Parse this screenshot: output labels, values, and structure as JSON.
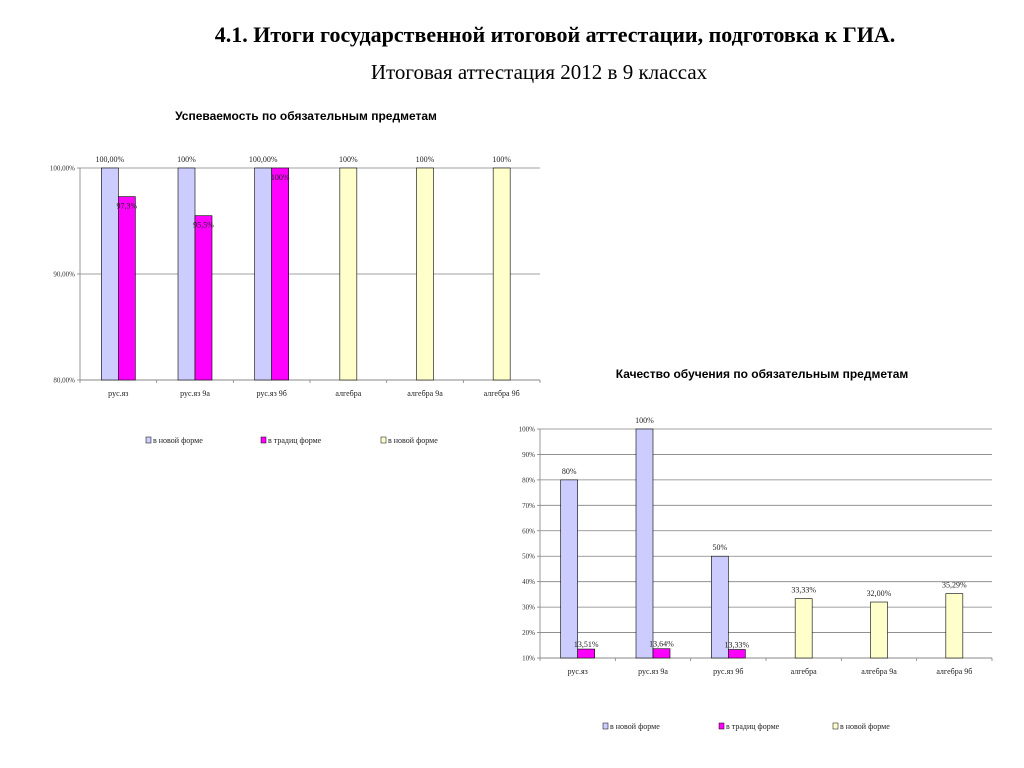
{
  "title": "4.1. Итоги  государственной итоговой аттестации, подготовка к ГИА.",
  "subtitle": "Итоговая аттестация 2012 в 9 классах",
  "colors": {
    "new_form": "#ccccff",
    "trad_form": "#ff00ff",
    "new_form_alg": "#ffffcc",
    "grid": "#808080",
    "edge": "#000000"
  },
  "chart_data": [
    {
      "type": "bar",
      "title": "Успеваемость по обязательным предметам",
      "categories": [
        "рус.яз",
        "рус.яз 9а",
        "рус.яз 9б",
        "алгебра",
        "алгебра 9а",
        "алгебра 9б"
      ],
      "ylim": [
        80,
        100
      ],
      "yticks": [
        80,
        90,
        100
      ],
      "ytick_labels": [
        "80,00%",
        "90,00%",
        "100,00%"
      ],
      "grid": true,
      "legend_position": "bottom",
      "series": [
        {
          "name": "в новой форме",
          "color": "#ccccff",
          "values": [
            100,
            100,
            100,
            null,
            null,
            null
          ],
          "labels": [
            "100,00%",
            "100%",
            "100,00%",
            "",
            "",
            ""
          ]
        },
        {
          "name": "в традиц форме",
          "color": "#ff00ff",
          "values": [
            97.3,
            95.5,
            100,
            null,
            null,
            null
          ],
          "labels": [
            "97,3%",
            "95,5%",
            "100%",
            "",
            "",
            ""
          ]
        },
        {
          "name": "в новой форме",
          "color": "#ffffcc",
          "values": [
            null,
            null,
            null,
            100,
            100,
            100
          ],
          "labels": [
            "",
            "",
            "",
            "100%",
            "100%",
            "100%"
          ]
        }
      ]
    },
    {
      "type": "bar",
      "title": "Качество обучения по обязательным предметам",
      "categories": [
        "рус.яз",
        "рус.яз 9а",
        "рус.яз 9б",
        "алгебра",
        "алгебра 9а",
        "алгебра 9б"
      ],
      "ylim": [
        10,
        100
      ],
      "yticks": [
        10,
        20,
        30,
        40,
        50,
        60,
        70,
        80,
        90,
        100
      ],
      "ytick_labels": [
        "10%",
        "20%",
        "30%",
        "40%",
        "50%",
        "60%",
        "70%",
        "80%",
        "90%",
        "100%"
      ],
      "grid": true,
      "legend_position": "bottom",
      "series": [
        {
          "name": "в новой форме",
          "color": "#ccccff",
          "values": [
            80,
            100,
            50,
            null,
            null,
            null
          ],
          "labels": [
            "80%",
            "100%",
            "50%",
            "",
            "",
            ""
          ]
        },
        {
          "name": "в традиц форме",
          "color": "#ff00ff",
          "values": [
            13.51,
            13.64,
            13.33,
            null,
            null,
            null
          ],
          "labels": [
            "13,51%",
            "13,64%",
            "13,33%",
            "",
            "",
            ""
          ]
        },
        {
          "name": "в новой форме",
          "color": "#ffffcc",
          "values": [
            null,
            null,
            null,
            33.33,
            32.0,
            35.29
          ],
          "labels": [
            "",
            "",
            "",
            "33,33%",
            "32,00%",
            "35,29%"
          ]
        }
      ]
    }
  ]
}
